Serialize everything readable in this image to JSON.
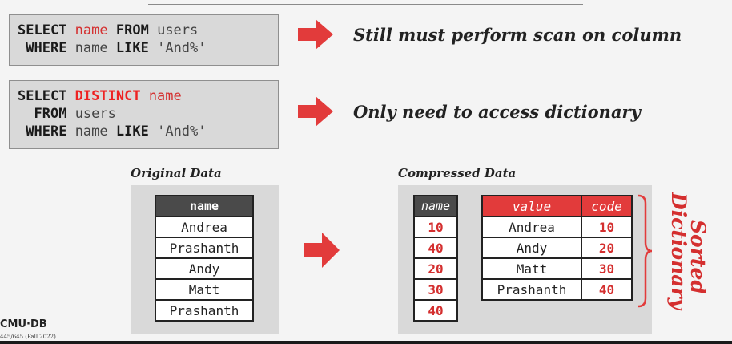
{
  "query1": {
    "line1": {
      "kw1": "SELECT",
      "col": "name",
      "kw2": "FROM",
      "table": "users"
    },
    "line2": {
      "kw1": "WHERE",
      "col": "name",
      "kw2": "LIKE",
      "pattern": "'And%'"
    }
  },
  "query2": {
    "line1": {
      "kw1": "SELECT",
      "kw2": "DISTINCT",
      "col": "name"
    },
    "line2": {
      "kw": "FROM",
      "table": "users"
    },
    "line3": {
      "kw1": "WHERE",
      "col": "name",
      "kw2": "LIKE",
      "pattern": "'And%'"
    }
  },
  "notes": {
    "note1": "Still must perform scan on column",
    "note2": "Only need to access dictionary"
  },
  "original": {
    "caption": "Original Data",
    "header": "name",
    "rows": [
      "Andrea",
      "Prashanth",
      "Andy",
      "Matt",
      "Prashanth"
    ]
  },
  "compressed": {
    "caption": "Compressed Data",
    "codes_header": "name",
    "codes": [
      "10",
      "40",
      "20",
      "30",
      "40"
    ],
    "dict_headers": {
      "value": "value",
      "code": "code"
    },
    "dict": [
      {
        "value": "Andrea",
        "code": "10"
      },
      {
        "value": "Andy",
        "code": "20"
      },
      {
        "value": "Matt",
        "code": "30"
      },
      {
        "value": "Prashanth",
        "code": "40"
      }
    ],
    "label_line1": "Sorted",
    "label_line2": "Dictionary"
  },
  "footer": {
    "logo": "CMU·DB",
    "course": "445/645 (Fall 2022)"
  },
  "colors": {
    "accent": "#e23b3b",
    "code_text": "#d42f2f",
    "header_dark": "#4a4a4a",
    "panel": "#d9d9d9"
  },
  "icons": {
    "arrow": "right-arrow-icon"
  }
}
